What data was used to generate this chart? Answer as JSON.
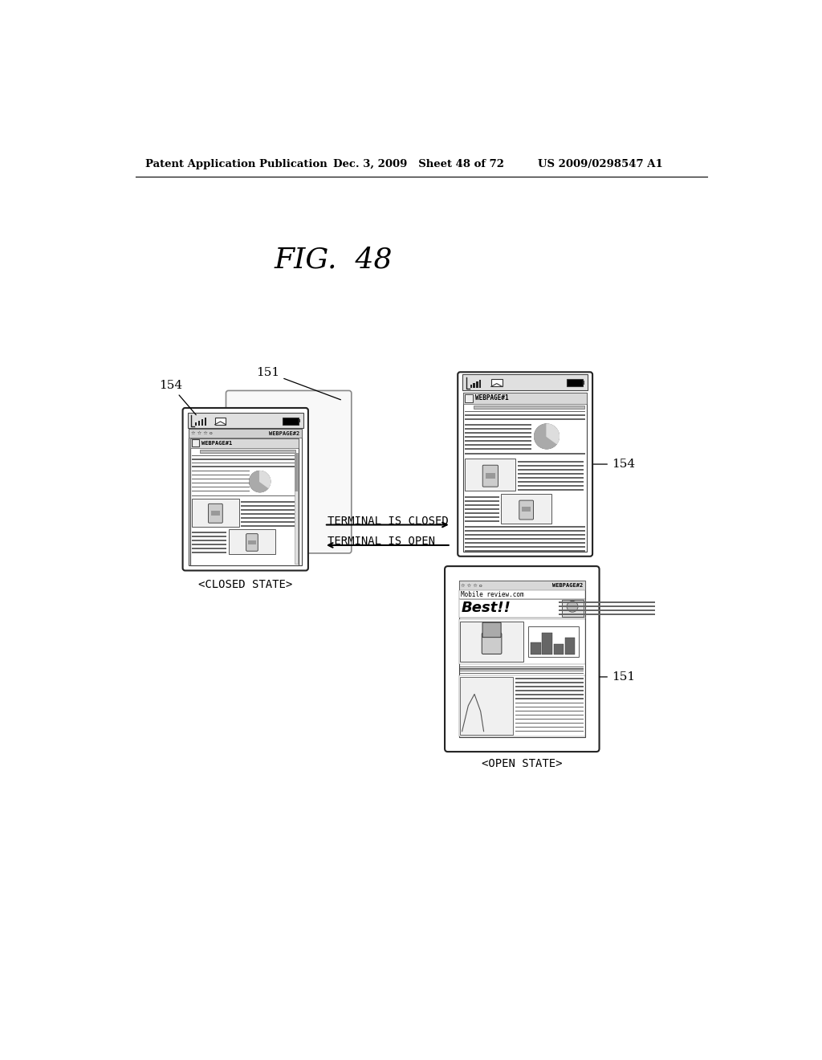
{
  "bg_color": "#ffffff",
  "header_left": "Patent Application Publication",
  "header_mid": "Dec. 3, 2009   Sheet 48 of 72",
  "header_right": "US 2009/0298547 A1",
  "fig_title": "FIG.  48",
  "closed_state_label": "<CLOSED STATE>",
  "open_state_label": "<OPEN STATE>",
  "arrow_top_text": "TERMINAL IS CLOSED",
  "arrow_bottom_text": "TERMINAL IS OPEN"
}
